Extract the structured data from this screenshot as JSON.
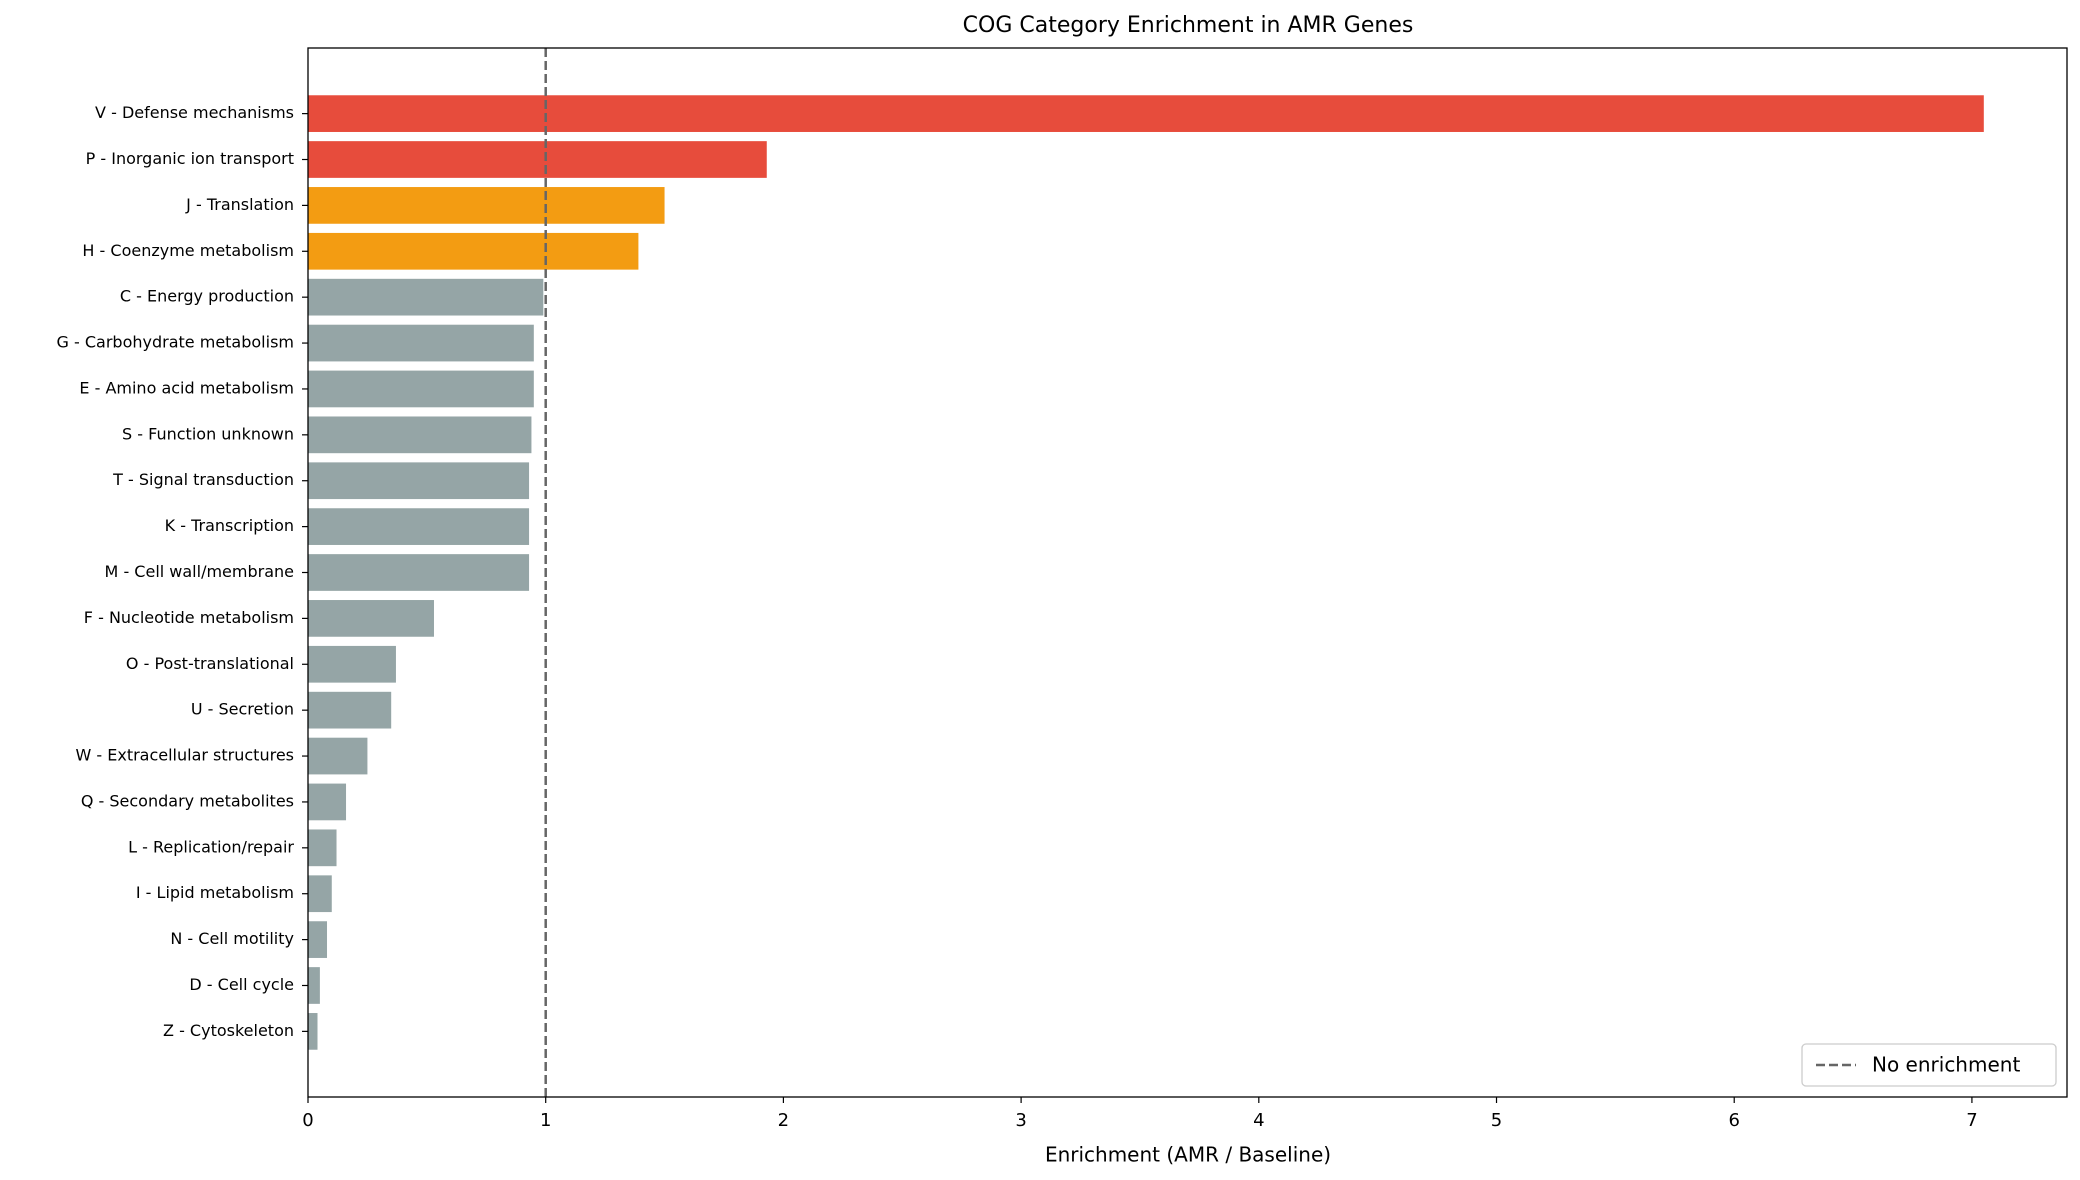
{
  "chart_data": {
    "type": "barh",
    "title": "COG Category Enrichment in AMR Genes",
    "xlabel": "Enrichment (AMR / Baseline)",
    "categories": [
      "V - Defense mechanisms",
      "P - Inorganic ion transport",
      "J - Translation",
      "H - Coenzyme metabolism",
      "C - Energy production",
      "G - Carbohydrate metabolism",
      "E - Amino acid metabolism",
      "S - Function unknown",
      "T - Signal transduction",
      "K - Transcription",
      "M - Cell wall/membrane",
      "F - Nucleotide metabolism",
      "O - Post-translational",
      "U - Secretion",
      "W - Extracellular structures",
      "Q - Secondary metabolites",
      "L - Replication/repair",
      "I - Lipid metabolism",
      "N - Cell motility",
      "D - Cell cycle",
      "Z - Cytoskeleton"
    ],
    "values": [
      7.05,
      1.93,
      1.5,
      1.39,
      0.99,
      0.95,
      0.95,
      0.94,
      0.93,
      0.93,
      0.93,
      0.53,
      0.37,
      0.35,
      0.25,
      0.16,
      0.12,
      0.1,
      0.08,
      0.05,
      0.04
    ],
    "colors": [
      "#e74c3c",
      "#e74c3c",
      "#f39c12",
      "#f39c12",
      "#95a5a6",
      "#95a5a6",
      "#95a5a6",
      "#95a5a6",
      "#95a5a6",
      "#95a5a6",
      "#95a5a6",
      "#95a5a6",
      "#95a5a6",
      "#95a5a6",
      "#95a5a6",
      "#95a5a6",
      "#95a5a6",
      "#95a5a6",
      "#95a5a6",
      "#95a5a6",
      "#95a5a6"
    ],
    "xlim": [
      0,
      7.4
    ],
    "xticks": [
      0,
      1,
      2,
      3,
      4,
      5,
      6,
      7
    ],
    "reference_line": {
      "value": 1,
      "label": "No enrichment",
      "color": "#666666"
    },
    "legend": "lower right"
  }
}
